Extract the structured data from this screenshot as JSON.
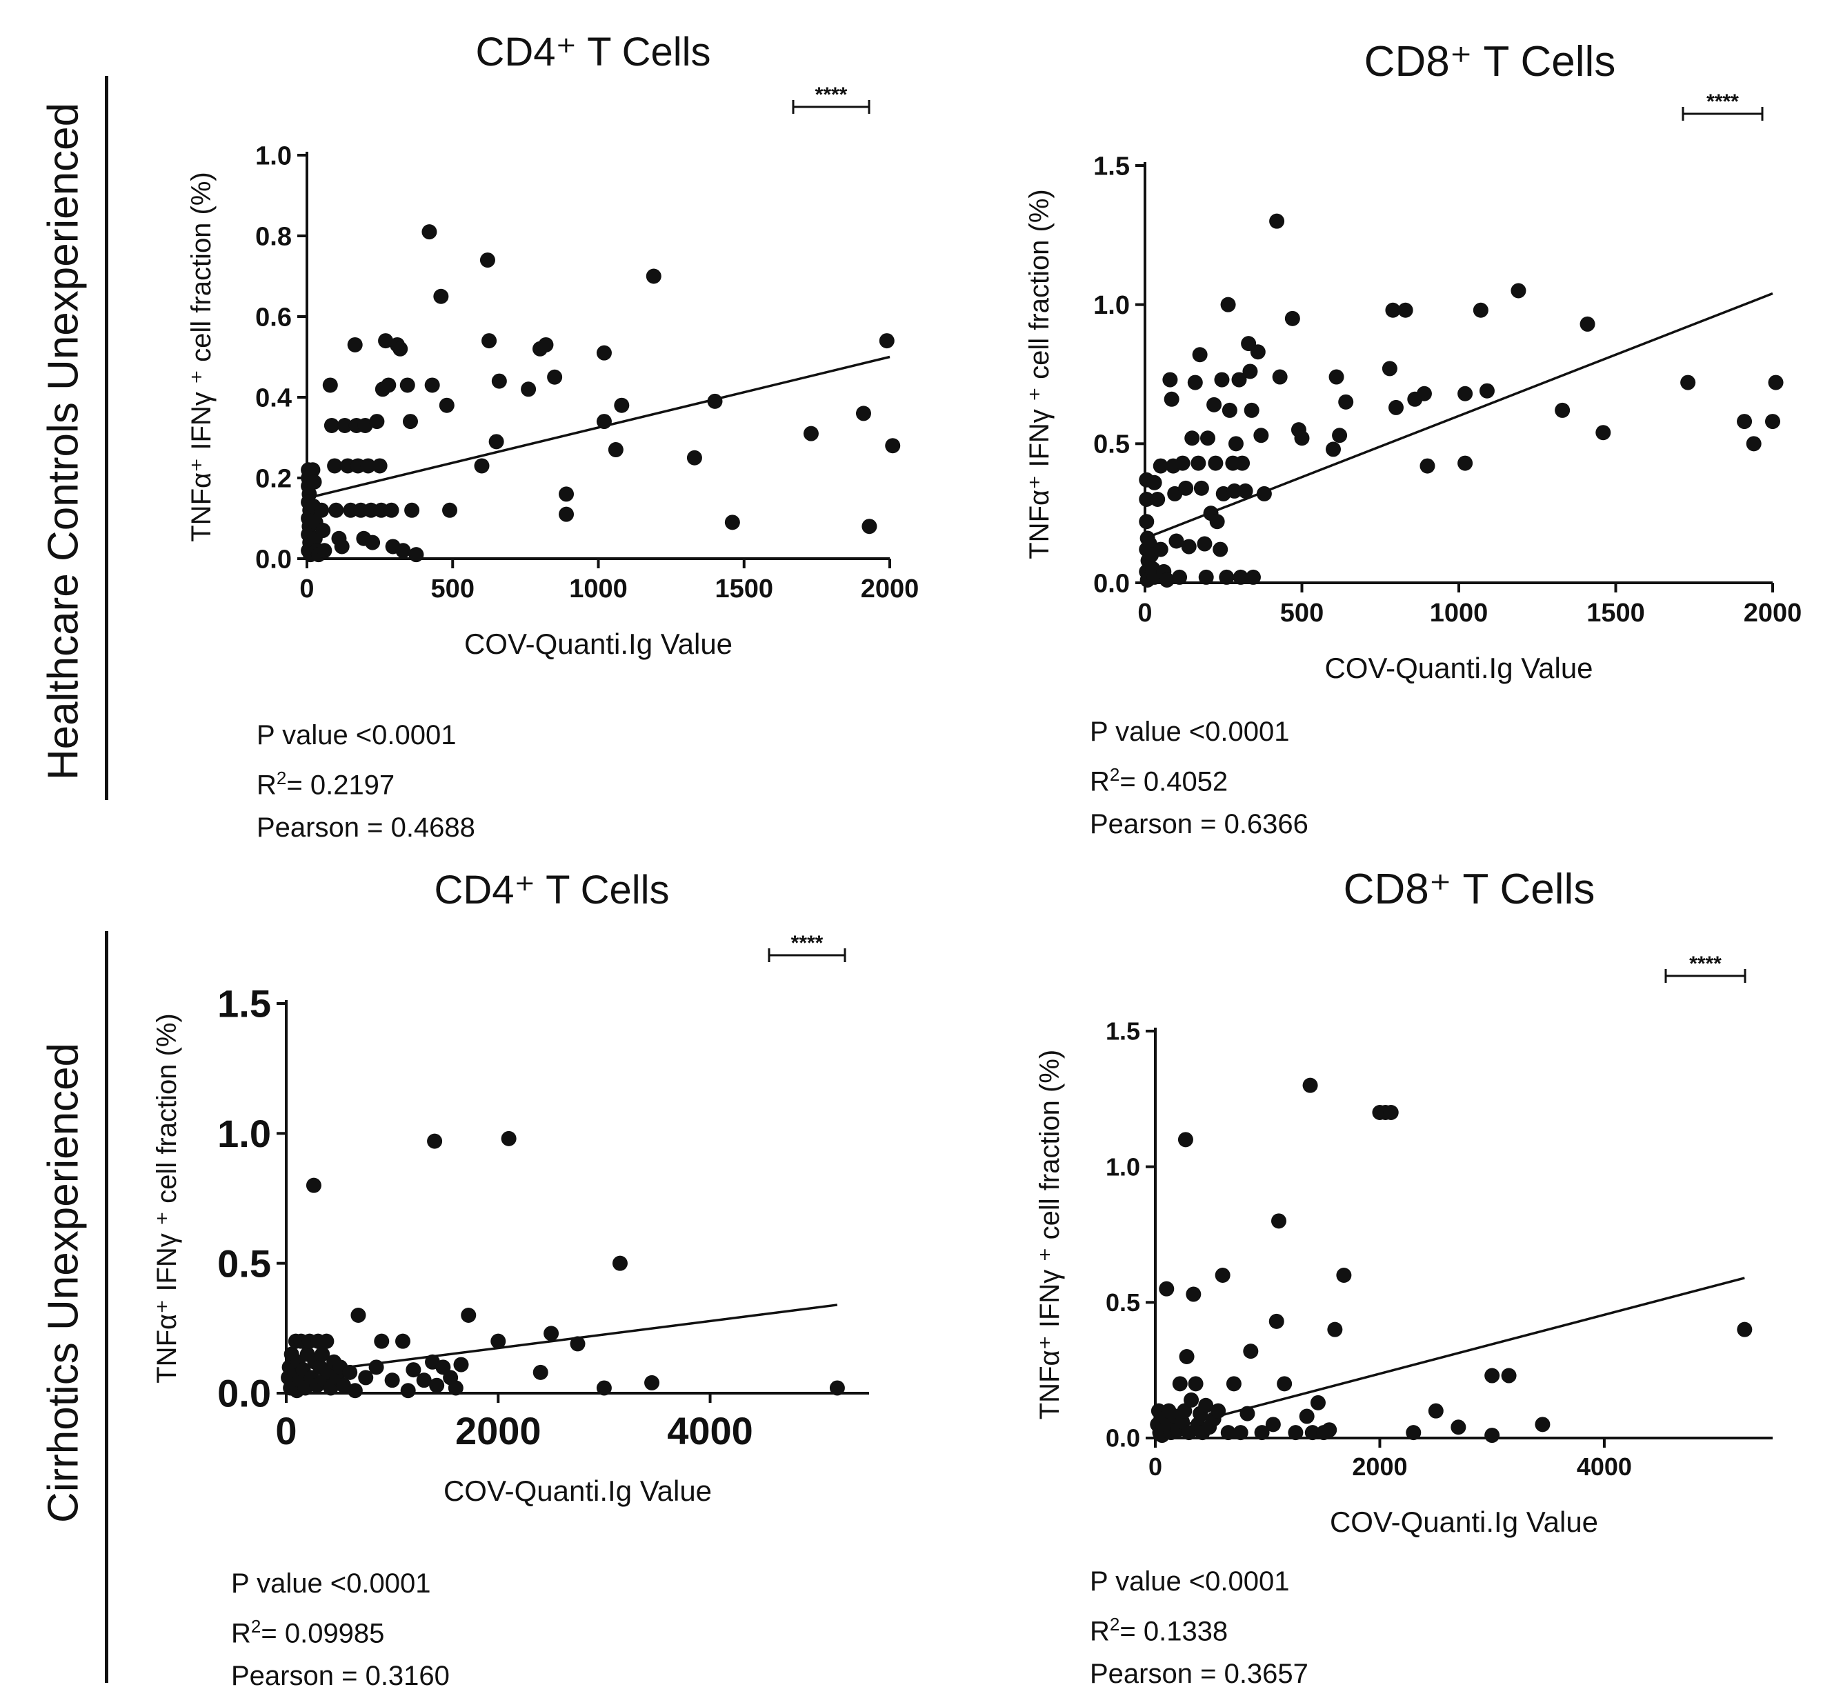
{
  "rows": [
    {
      "label": "Healthcare Controls Unexperienced"
    },
    {
      "label": "Cirrhotics Unexperienced"
    }
  ],
  "colors": {
    "ink": "#111111",
    "background": "#ffffff"
  },
  "chart_data": [
    {
      "type": "scatter",
      "title": "CD4⁺ T Cells",
      "xlabel": "COV-Quanti.Ig Value",
      "ylabel": "TNFα⁺ IFNγ ⁺ cell fraction (%)",
      "xlim": [
        0,
        2000
      ],
      "ylim": [
        0,
        1.0
      ],
      "xticks": [
        0,
        500,
        1000,
        1500,
        2000
      ],
      "yticks": [
        0.0,
        0.2,
        0.4,
        0.6,
        0.8,
        1.0
      ],
      "significance": "****",
      "stats": {
        "p": "P value <0.0001",
        "r2": "= 0.2197",
        "pearson": "Pearson = 0.4688"
      },
      "regression": {
        "x": [
          0,
          2000
        ],
        "y": [
          0.15,
          0.5
        ]
      },
      "points": [
        [
          5,
          0.22
        ],
        [
          5,
          0.2
        ],
        [
          5,
          0.18
        ],
        [
          8,
          0.16
        ],
        [
          5,
          0.14
        ],
        [
          10,
          0.12
        ],
        [
          5,
          0.1
        ],
        [
          8,
          0.08
        ],
        [
          5,
          0.06
        ],
        [
          10,
          0.04
        ],
        [
          5,
          0.02
        ],
        [
          12,
          0.01
        ],
        [
          20,
          0.22
        ],
        [
          25,
          0.19
        ],
        [
          22,
          0.13
        ],
        [
          30,
          0.09
        ],
        [
          28,
          0.05
        ],
        [
          35,
          0.02
        ],
        [
          40,
          0.01
        ],
        [
          50,
          0.12
        ],
        [
          55,
          0.07
        ],
        [
          60,
          0.02
        ],
        [
          80,
          0.43
        ],
        [
          85,
          0.33
        ],
        [
          95,
          0.23
        ],
        [
          100,
          0.12
        ],
        [
          110,
          0.05
        ],
        [
          120,
          0.03
        ],
        [
          130,
          0.33
        ],
        [
          140,
          0.23
        ],
        [
          150,
          0.12
        ],
        [
          165,
          0.53
        ],
        [
          170,
          0.33
        ],
        [
          175,
          0.23
        ],
        [
          185,
          0.12
        ],
        [
          195,
          0.05
        ],
        [
          200,
          0.33
        ],
        [
          210,
          0.23
        ],
        [
          220,
          0.12
        ],
        [
          225,
          0.04
        ],
        [
          240,
          0.34
        ],
        [
          250,
          0.23
        ],
        [
          255,
          0.12
        ],
        [
          260,
          0.42
        ],
        [
          270,
          0.54
        ],
        [
          280,
          0.43
        ],
        [
          290,
          0.12
        ],
        [
          295,
          0.03
        ],
        [
          310,
          0.53
        ],
        [
          320,
          0.52
        ],
        [
          330,
          0.02
        ],
        [
          345,
          0.43
        ],
        [
          355,
          0.34
        ],
        [
          360,
          0.12
        ],
        [
          375,
          0.01
        ],
        [
          420,
          0.81
        ],
        [
          430,
          0.43
        ],
        [
          460,
          0.65
        ],
        [
          480,
          0.38
        ],
        [
          490,
          0.12
        ],
        [
          600,
          0.23
        ],
        [
          620,
          0.74
        ],
        [
          625,
          0.54
        ],
        [
          650,
          0.29
        ],
        [
          660,
          0.44
        ],
        [
          760,
          0.42
        ],
        [
          800,
          0.52
        ],
        [
          820,
          0.53
        ],
        [
          850,
          0.45
        ],
        [
          890,
          0.16
        ],
        [
          890,
          0.11
        ],
        [
          1020,
          0.51
        ],
        [
          1020,
          0.34
        ],
        [
          1060,
          0.27
        ],
        [
          1080,
          0.38
        ],
        [
          1190,
          0.7
        ],
        [
          1330,
          0.25
        ],
        [
          1400,
          0.39
        ],
        [
          1460,
          0.09
        ],
        [
          1730,
          0.31
        ],
        [
          1910,
          0.36
        ],
        [
          1930,
          0.08
        ],
        [
          1990,
          0.54
        ],
        [
          2010,
          0.28
        ]
      ]
    },
    {
      "type": "scatter",
      "title": "CD8⁺ T Cells",
      "xlabel": "COV-Quanti.Ig Value",
      "ylabel": "TNFα⁺ IFNγ ⁺ cell fraction (%)",
      "xlim": [
        0,
        2000
      ],
      "ylim": [
        0,
        1.5
      ],
      "xticks": [
        0,
        500,
        1000,
        1500,
        2000
      ],
      "yticks": [
        0.0,
        0.5,
        1.0,
        1.5
      ],
      "significance": "****",
      "stats": {
        "p": "P value  <0.0001",
        "r2": "= 0.4052",
        "pearson": "Pearson = 0.6366"
      },
      "regression": {
        "x": [
          0,
          2000
        ],
        "y": [
          0.16,
          1.04
        ]
      },
      "points": [
        [
          5,
          0.37
        ],
        [
          5,
          0.3
        ],
        [
          5,
          0.22
        ],
        [
          8,
          0.16
        ],
        [
          5,
          0.12
        ],
        [
          10,
          0.08
        ],
        [
          5,
          0.04
        ],
        [
          8,
          0.01
        ],
        [
          15,
          0.14
        ],
        [
          20,
          0.1
        ],
        [
          25,
          0.05
        ],
        [
          30,
          0.02
        ],
        [
          30,
          0.36
        ],
        [
          40,
          0.3
        ],
        [
          50,
          0.42
        ],
        [
          50,
          0.12
        ],
        [
          60,
          0.04
        ],
        [
          70,
          0.01
        ],
        [
          80,
          0.73
        ],
        [
          85,
          0.66
        ],
        [
          90,
          0.42
        ],
        [
          95,
          0.32
        ],
        [
          100,
          0.15
        ],
        [
          110,
          0.02
        ],
        [
          120,
          0.43
        ],
        [
          130,
          0.34
        ],
        [
          140,
          0.13
        ],
        [
          150,
          0.52
        ],
        [
          160,
          0.72
        ],
        [
          170,
          0.43
        ],
        [
          175,
          0.82
        ],
        [
          180,
          0.34
        ],
        [
          190,
          0.14
        ],
        [
          195,
          0.02
        ],
        [
          200,
          0.52
        ],
        [
          210,
          0.25
        ],
        [
          220,
          0.64
        ],
        [
          225,
          0.43
        ],
        [
          230,
          0.22
        ],
        [
          240,
          0.12
        ],
        [
          245,
          0.73
        ],
        [
          250,
          0.32
        ],
        [
          260,
          0.02
        ],
        [
          265,
          1.0
        ],
        [
          270,
          0.62
        ],
        [
          280,
          0.43
        ],
        [
          285,
          0.33
        ],
        [
          290,
          0.5
        ],
        [
          300,
          0.73
        ],
        [
          305,
          0.02
        ],
        [
          310,
          0.43
        ],
        [
          320,
          0.33
        ],
        [
          330,
          0.86
        ],
        [
          335,
          0.76
        ],
        [
          340,
          0.62
        ],
        [
          345,
          0.02
        ],
        [
          360,
          0.83
        ],
        [
          370,
          0.53
        ],
        [
          380,
          0.32
        ],
        [
          420,
          1.3
        ],
        [
          430,
          0.74
        ],
        [
          470,
          0.95
        ],
        [
          490,
          0.55
        ],
        [
          500,
          0.52
        ],
        [
          600,
          0.48
        ],
        [
          610,
          0.74
        ],
        [
          620,
          0.53
        ],
        [
          640,
          0.65
        ],
        [
          780,
          0.77
        ],
        [
          790,
          0.98
        ],
        [
          800,
          0.63
        ],
        [
          830,
          0.98
        ],
        [
          860,
          0.66
        ],
        [
          890,
          0.68
        ],
        [
          900,
          0.42
        ],
        [
          1020,
          0.68
        ],
        [
          1020,
          0.43
        ],
        [
          1070,
          0.98
        ],
        [
          1090,
          0.69
        ],
        [
          1190,
          1.05
        ],
        [
          1330,
          0.62
        ],
        [
          1410,
          0.93
        ],
        [
          1460,
          0.54
        ],
        [
          1730,
          0.72
        ],
        [
          1910,
          0.58
        ],
        [
          1940,
          0.5
        ],
        [
          2000,
          0.58
        ],
        [
          2010,
          0.72
        ]
      ]
    },
    {
      "type": "scatter",
      "title": "CD4⁺ T Cells",
      "xlabel": "COV-Quanti.Ig Value",
      "ylabel": "TNFα⁺ IFNγ ⁺ cell fraction (%)",
      "xlim": [
        0,
        5500
      ],
      "ylim": [
        0,
        1.5
      ],
      "xticks": [
        0,
        2000,
        4000
      ],
      "yticks": [
        0.0,
        0.5,
        1.0,
        1.5
      ],
      "significance": "****",
      "stats": {
        "p": "P value  <0.0001",
        "r2": "= 0.09985",
        "pearson": "Pearson = 0.3160"
      },
      "regression": {
        "x": [
          0,
          5200
        ],
        "y": [
          0.07,
          0.34
        ]
      },
      "points": [
        [
          20,
          0.06
        ],
        [
          30,
          0.1
        ],
        [
          40,
          0.02
        ],
        [
          50,
          0.15
        ],
        [
          60,
          0.04
        ],
        [
          80,
          0.08
        ],
        [
          90,
          0.2
        ],
        [
          100,
          0.01
        ],
        [
          110,
          0.12
        ],
        [
          130,
          0.05
        ],
        [
          140,
          0.2
        ],
        [
          160,
          0.09
        ],
        [
          180,
          0.02
        ],
        [
          200,
          0.15
        ],
        [
          220,
          0.2
        ],
        [
          240,
          0.06
        ],
        [
          260,
          0.8
        ],
        [
          270,
          0.12
        ],
        [
          290,
          0.03
        ],
        [
          300,
          0.2
        ],
        [
          320,
          0.1
        ],
        [
          340,
          0.15
        ],
        [
          360,
          0.05
        ],
        [
          380,
          0.2
        ],
        [
          400,
          0.08
        ],
        [
          420,
          0.02
        ],
        [
          450,
          0.12
        ],
        [
          480,
          0.06
        ],
        [
          510,
          0.1
        ],
        [
          540,
          0.03
        ],
        [
          600,
          0.08
        ],
        [
          650,
          0.01
        ],
        [
          680,
          0.3
        ],
        [
          750,
          0.06
        ],
        [
          850,
          0.1
        ],
        [
          900,
          0.2
        ],
        [
          1000,
          0.05
        ],
        [
          1100,
          0.2
        ],
        [
          1150,
          0.01
        ],
        [
          1200,
          0.09
        ],
        [
          1300,
          0.05
        ],
        [
          1380,
          0.12
        ],
        [
          1400,
          0.97
        ],
        [
          1420,
          0.03
        ],
        [
          1480,
          0.1
        ],
        [
          1550,
          0.06
        ],
        [
          1600,
          0.02
        ],
        [
          1650,
          0.11
        ],
        [
          1720,
          0.3
        ],
        [
          2000,
          0.2
        ],
        [
          2100,
          0.98
        ],
        [
          2400,
          0.08
        ],
        [
          2500,
          0.23
        ],
        [
          2750,
          0.19
        ],
        [
          3000,
          0.02
        ],
        [
          3150,
          0.5
        ],
        [
          3450,
          0.04
        ],
        [
          5200,
          0.02
        ]
      ]
    },
    {
      "type": "scatter",
      "title": "CD8⁺ T Cells",
      "xlabel": "COV-Quanti.Ig Value",
      "ylabel": "TNFα⁺ IFNγ ⁺ cell fraction (%)",
      "xlim": [
        0,
        5500
      ],
      "ylim": [
        0,
        1.5
      ],
      "xticks": [
        0,
        2000,
        4000
      ],
      "yticks": [
        0.0,
        0.5,
        1.0,
        1.5
      ],
      "significance": "****",
      "stats": {
        "p": "P value <0.0001",
        "r2": "= 0.1338",
        "pearson": "Pearson = 0.3657"
      },
      "regression": {
        "x": [
          0,
          5250
        ],
        "y": [
          0.02,
          0.59
        ]
      },
      "points": [
        [
          20,
          0.05
        ],
        [
          30,
          0.1
        ],
        [
          40,
          0.02
        ],
        [
          50,
          0.07
        ],
        [
          60,
          0.01
        ],
        [
          70,
          0.04
        ],
        [
          80,
          0.08
        ],
        [
          90,
          0.03
        ],
        [
          100,
          0.55
        ],
        [
          110,
          0.06
        ],
        [
          120,
          0.1
        ],
        [
          140,
          0.02
        ],
        [
          160,
          0.05
        ],
        [
          180,
          0.08
        ],
        [
          200,
          0.03
        ],
        [
          220,
          0.2
        ],
        [
          240,
          0.06
        ],
        [
          260,
          0.1
        ],
        [
          270,
          1.1
        ],
        [
          280,
          0.3
        ],
        [
          300,
          0.02
        ],
        [
          320,
          0.14
        ],
        [
          340,
          0.53
        ],
        [
          360,
          0.2
        ],
        [
          380,
          0.05
        ],
        [
          400,
          0.09
        ],
        [
          420,
          0.02
        ],
        [
          450,
          0.12
        ],
        [
          480,
          0.04
        ],
        [
          520,
          0.07
        ],
        [
          560,
          0.1
        ],
        [
          600,
          0.6
        ],
        [
          650,
          0.02
        ],
        [
          700,
          0.2
        ],
        [
          760,
          0.02
        ],
        [
          820,
          0.09
        ],
        [
          850,
          0.32
        ],
        [
          950,
          0.02
        ],
        [
          1050,
          0.05
        ],
        [
          1080,
          0.43
        ],
        [
          1100,
          0.8
        ],
        [
          1150,
          0.2
        ],
        [
          1250,
          0.02
        ],
        [
          1350,
          0.08
        ],
        [
          1380,
          1.3
        ],
        [
          1400,
          0.02
        ],
        [
          1450,
          0.13
        ],
        [
          1500,
          0.02
        ],
        [
          1550,
          0.03
        ],
        [
          1600,
          0.4
        ],
        [
          1680,
          0.6
        ],
        [
          2000,
          1.2
        ],
        [
          2050,
          1.2
        ],
        [
          2100,
          1.2
        ],
        [
          2300,
          0.02
        ],
        [
          2500,
          0.1
        ],
        [
          2700,
          0.04
        ],
        [
          3000,
          0.23
        ],
        [
          3000,
          0.01
        ],
        [
          3150,
          0.23
        ],
        [
          3450,
          0.05
        ],
        [
          5250,
          0.4
        ]
      ]
    }
  ]
}
